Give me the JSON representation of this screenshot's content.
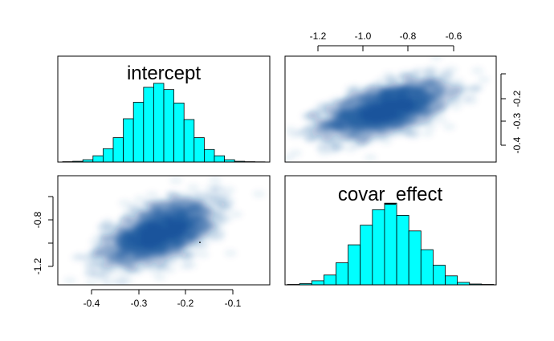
{
  "chart_data": {
    "type": "pairs",
    "variables": [
      "intercept",
      "covar_effect"
    ],
    "diagonal": [
      {
        "variable": "intercept",
        "type": "bar",
        "title": "intercept",
        "bin_edges": [
          -0.45,
          -0.43,
          -0.41,
          -0.39,
          -0.37,
          -0.35,
          -0.33,
          -0.31,
          -0.29,
          -0.27,
          -0.25,
          -0.23,
          -0.21,
          -0.19,
          -0.17,
          -0.15,
          -0.13,
          -0.11,
          -0.09,
          -0.07,
          -0.05
        ],
        "values": [
          0.5,
          1,
          3,
          8,
          17,
          31,
          55,
          76,
          95,
          100,
          92,
          75,
          54,
          31,
          16,
          8,
          3,
          1,
          0.5,
          0.3
        ],
        "ylim": [
          0,
          110
        ]
      },
      {
        "variable": "covar_effect",
        "type": "bar",
        "title": "covar_effect",
        "bin_edges": [
          -1.3,
          -1.25,
          -1.2,
          -1.15,
          -1.1,
          -1.05,
          -1.0,
          -0.95,
          -0.9,
          -0.85,
          -0.8,
          -0.75,
          -0.7,
          -0.65,
          -0.6,
          -0.55,
          -0.5,
          -0.45
        ],
        "values": [
          0.5,
          1.5,
          5,
          12,
          27,
          49,
          73,
          92,
          100,
          85,
          66,
          43,
          24,
          11,
          3,
          1,
          0.5
        ],
        "ylim": [
          0,
          110
        ]
      }
    ],
    "scatter_panels": [
      {
        "type": "smoothscatter",
        "x_variable": "covar_effect",
        "y_variable": "intercept",
        "xlim": [
          -1.35,
          -0.45
        ],
        "ylim": [
          -0.47,
          -0.05
        ],
        "center": [
          -0.92,
          -0.26
        ],
        "spread": [
          0.13,
          0.055
        ],
        "correlation": 0.55
      },
      {
        "type": "smoothscatter",
        "x_variable": "intercept",
        "y_variable": "covar_effect",
        "xlim": [
          -0.47,
          -0.03
        ],
        "ylim": [
          -1.35,
          -0.45
        ],
        "center": [
          -0.26,
          -0.92
        ],
        "spread": [
          0.055,
          0.13
        ],
        "correlation": 0.55
      }
    ],
    "axes": {
      "top_ticks": [
        "-1.2",
        "-1.0",
        "-0.8",
        "-0.6"
      ],
      "right_ticks": [
        "-0.2",
        "-0.3",
        "-0.4"
      ],
      "left_ticks": [
        "-0.8",
        "-1.2"
      ],
      "bottom_ticks": [
        "-0.4",
        "-0.3",
        "-0.2",
        "-0.1"
      ]
    }
  }
}
